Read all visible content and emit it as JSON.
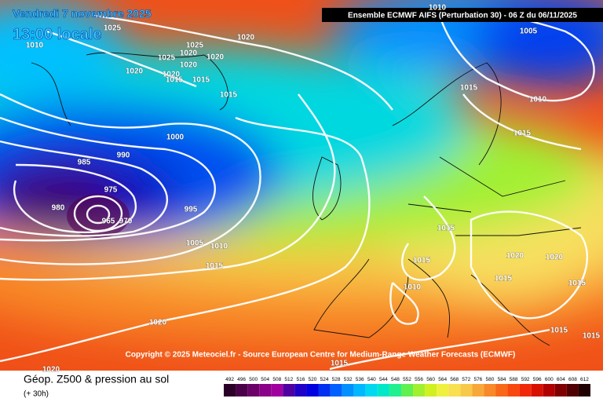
{
  "header": {
    "date": "Vendredi 7 novembre 2025",
    "time": "13:00 locale",
    "model": "Ensemble ECMWF AIFS  (Perturbation 30)  -  06 Z du 06/11/2025"
  },
  "copyright": "Copyright © 2025 Meteociel.fr - Source European Centre for Medium-Range Weather Forecasts (ECMWF)",
  "footer": {
    "title": "Géop. Z500 & pression au sol",
    "lead": "(+ 30h)"
  },
  "isobar_labels": [
    1025,
    1010,
    1020,
    1025,
    1025,
    1020,
    1020,
    1020,
    1020,
    1020,
    1015,
    1015,
    1015,
    1015,
    1005,
    1010,
    1010,
    1015,
    1000,
    990,
    985,
    975,
    980,
    965,
    970,
    995,
    1005,
    1010,
    1015,
    1015,
    1015,
    1010,
    1020,
    1020,
    1015,
    1015,
    1015,
    1015,
    1020,
    1020,
    1015
  ],
  "scale": {
    "values": [
      492,
      496,
      500,
      504,
      508,
      512,
      516,
      520,
      524,
      528,
      532,
      536,
      540,
      544,
      548,
      552,
      556,
      560,
      564,
      568,
      572,
      576,
      580,
      584,
      588,
      592,
      596,
      600,
      604,
      608,
      612
    ],
    "colors": [
      "#2a0028",
      "#4a0048",
      "#6a0068",
      "#8a0088",
      "#a000a0",
      "#5000a0",
      "#2000c8",
      "#0000e0",
      "#0030f0",
      "#0060ff",
      "#0090ff",
      "#00b8ff",
      "#00d8f0",
      "#00e8c8",
      "#20f090",
      "#60f050",
      "#a0f030",
      "#d0f020",
      "#f0f040",
      "#f8e050",
      "#f8c848",
      "#f8a838",
      "#f88828",
      "#f86818",
      "#f84810",
      "#f02808",
      "#d81000",
      "#b00000",
      "#800000",
      "#500000",
      "#200000"
    ]
  }
}
